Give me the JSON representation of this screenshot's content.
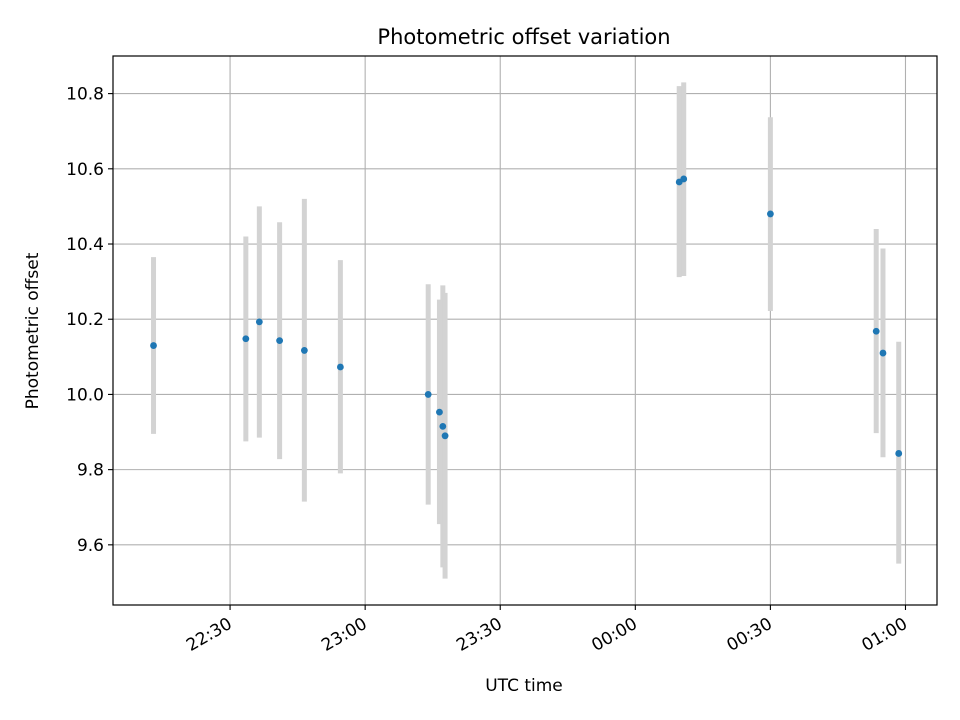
{
  "chart_data": {
    "type": "scatter",
    "title": "Photometric offset variation",
    "xlabel": "UTC time",
    "ylabel": "Photometric offset",
    "xlim": [
      "22:04",
      "01:07"
    ],
    "ylim": [
      9.44,
      10.9
    ],
    "x_ticks": [
      "22:30",
      "23:00",
      "23:30",
      "00:00",
      "00:30",
      "01:00"
    ],
    "y_ticks": [
      9.6,
      9.8,
      10.0,
      10.2,
      10.4,
      10.6,
      10.8
    ],
    "y_tick_labels": [
      "9.6",
      "9.8",
      "10.0",
      "10.2",
      "10.4",
      "10.6",
      "10.8"
    ],
    "grid": true,
    "marker_color": "#1f77b4",
    "errorbar_color": "#d3d3d3",
    "points": [
      {
        "time": "22:13:00",
        "y": 10.13,
        "ylo": 9.895,
        "yhi": 10.365
      },
      {
        "time": "22:33:30",
        "y": 10.148,
        "ylo": 9.875,
        "yhi": 10.42
      },
      {
        "time": "22:36:30",
        "y": 10.193,
        "ylo": 9.885,
        "yhi": 10.5
      },
      {
        "time": "22:41:00",
        "y": 10.143,
        "ylo": 9.828,
        "yhi": 10.458
      },
      {
        "time": "22:46:30",
        "y": 10.117,
        "ylo": 9.715,
        "yhi": 10.52
      },
      {
        "time": "22:54:30",
        "y": 10.073,
        "ylo": 9.79,
        "yhi": 10.357
      },
      {
        "time": "23:14:00",
        "y": 10.0,
        "ylo": 9.707,
        "yhi": 10.293
      },
      {
        "time": "23:16:30",
        "y": 9.953,
        "ylo": 9.655,
        "yhi": 10.252
      },
      {
        "time": "23:17:15",
        "y": 9.915,
        "ylo": 9.54,
        "yhi": 10.29
      },
      {
        "time": "23:17:45",
        "y": 9.89,
        "ylo": 9.51,
        "yhi": 10.27
      },
      {
        "time": "00:09:45",
        "y": 10.565,
        "ylo": 10.312,
        "yhi": 10.82
      },
      {
        "time": "00:10:45",
        "y": 10.573,
        "ylo": 10.315,
        "yhi": 10.83
      },
      {
        "time": "00:30:00",
        "y": 10.48,
        "ylo": 10.222,
        "yhi": 10.737
      },
      {
        "time": "00:53:30",
        "y": 10.168,
        "ylo": 9.897,
        "yhi": 10.44
      },
      {
        "time": "00:55:00",
        "y": 10.11,
        "ylo": 9.833,
        "yhi": 10.388
      },
      {
        "time": "00:58:30",
        "y": 9.843,
        "ylo": 9.55,
        "yhi": 10.14
      }
    ]
  }
}
